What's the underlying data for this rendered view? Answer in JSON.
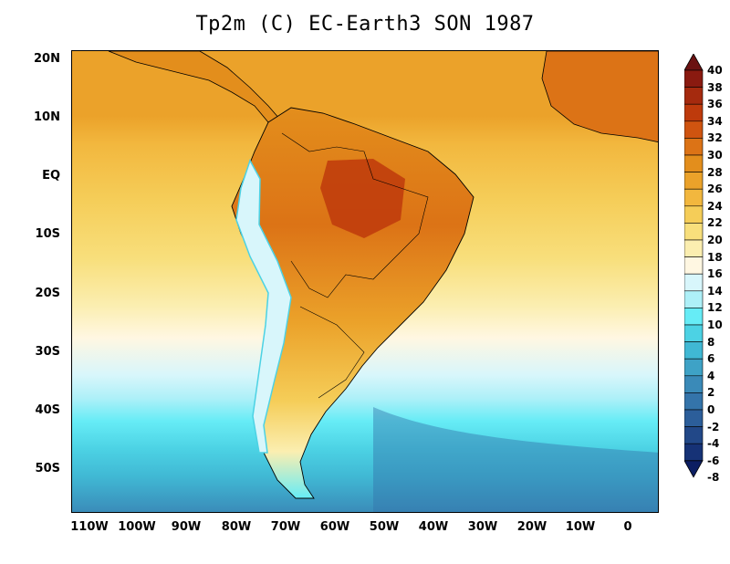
{
  "title": "Tp2m (C)  EC-Earth3 SON 1987",
  "map": {
    "variable": "Tp2m",
    "units": "C",
    "model": "EC-Earth3",
    "season": "SON",
    "year": "1987",
    "lat_labels": [
      "20N",
      "10N",
      "EQ",
      "10S",
      "20S",
      "30S",
      "40S",
      "50S"
    ],
    "lon_labels": [
      "110W",
      "100W",
      "90W",
      "80W",
      "70W",
      "60W",
      "50W",
      "40W",
      "30W",
      "20W",
      "10W",
      "0"
    ]
  },
  "colorbar": {
    "levels": [
      "40",
      "38",
      "36",
      "34",
      "32",
      "30",
      "28",
      "26",
      "24",
      "22",
      "20",
      "18",
      "16",
      "14",
      "12",
      "10",
      "8",
      "6",
      "4",
      "2",
      "0",
      "-2",
      "-4",
      "-6",
      "-8"
    ],
    "colors": [
      "#6b1212",
      "#8a1a10",
      "#a52a0e",
      "#be3a0c",
      "#cf5410",
      "#dc7316",
      "#e38e1c",
      "#eba22a",
      "#f2b73e",
      "#f5cd58",
      "#f8df7c",
      "#fbeeb0",
      "#fff7e2",
      "#d8f6fb",
      "#aef0f8",
      "#66ecf6",
      "#4cd2e4",
      "#40b8d4",
      "#3ea2c6",
      "#3a8ab8",
      "#3474aa",
      "#2c5e9a",
      "#224888",
      "#163276",
      "#0c1e62"
    ]
  }
}
